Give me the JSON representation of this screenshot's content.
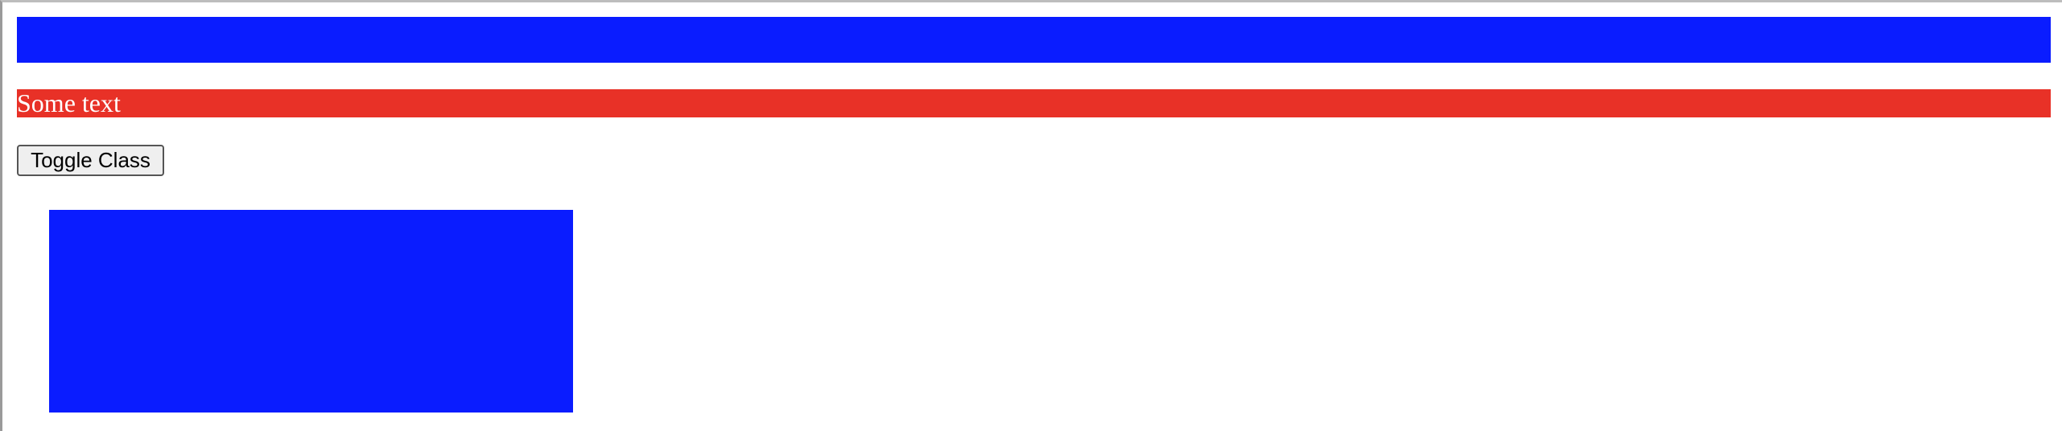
{
  "colors": {
    "blue_bar": "#0a1cff",
    "red_bar": "#e83127",
    "red_bar_text": "#ffffff",
    "blue_box": "#0a1cff"
  },
  "red_bar": {
    "text": "Some text"
  },
  "button": {
    "label": "Toggle Class"
  }
}
